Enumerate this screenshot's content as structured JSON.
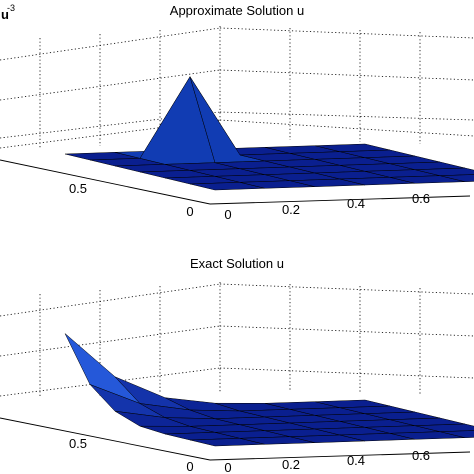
{
  "chart_data": [
    {
      "type": "surface3d",
      "title": "Approximate Solution u",
      "exponent_label": "-3",
      "xticks": [
        "0",
        "0.2",
        "0.4",
        "0.6"
      ],
      "yticks": [
        "0",
        "0.5"
      ],
      "x": [
        0,
        0.125,
        0.25,
        0.375,
        0.5,
        0.625,
        0.75
      ],
      "y": [
        0,
        0.125,
        0.25,
        0.375,
        0.5,
        0.625,
        0.75
      ],
      "z": [
        [
          0,
          0,
          0,
          0,
          0,
          0,
          0
        ],
        [
          0,
          0,
          0,
          0,
          0,
          0,
          0
        ],
        [
          0,
          0,
          0,
          0,
          0,
          0,
          0
        ],
        [
          0,
          0,
          0,
          0,
          0,
          0,
          0
        ],
        [
          0,
          0,
          0,
          0,
          0,
          0,
          0
        ],
        [
          0,
          0,
          0.8,
          0,
          0,
          0,
          0
        ],
        [
          0,
          0,
          0,
          0,
          0,
          0,
          0
        ]
      ],
      "zlim": [
        0,
        1
      ],
      "colors": {
        "low": "#0a1f8f",
        "high": "#1f7bff"
      }
    },
    {
      "type": "surface3d",
      "title": "Exact Solution u",
      "xticks": [
        "0",
        "0.2",
        "0.4",
        "0.6"
      ],
      "yticks": [
        "0",
        "0.5"
      ],
      "x": [
        0,
        0.125,
        0.25,
        0.375,
        0.5,
        0.625,
        0.75
      ],
      "y": [
        0,
        0.125,
        0.25,
        0.375,
        0.5,
        0.625,
        0.75
      ],
      "z": [
        [
          0,
          0,
          0,
          0,
          0,
          0,
          0
        ],
        [
          0,
          0,
          0,
          0,
          0,
          0,
          0
        ],
        [
          0,
          0,
          0,
          0,
          0,
          0,
          0
        ],
        [
          0.02,
          0,
          0,
          0,
          0,
          0,
          0
        ],
        [
          0.12,
          0.03,
          0,
          0,
          0,
          0,
          0
        ],
        [
          0.35,
          0.12,
          0.03,
          0,
          0,
          0,
          0
        ],
        [
          0.85,
          0.35,
          0.1,
          0.02,
          0,
          0,
          0
        ]
      ],
      "zlim": [
        0,
        1
      ],
      "colors": {
        "low": "#0a1f8f",
        "mid": "#2a63e8",
        "high": "#6fffd8"
      }
    }
  ]
}
